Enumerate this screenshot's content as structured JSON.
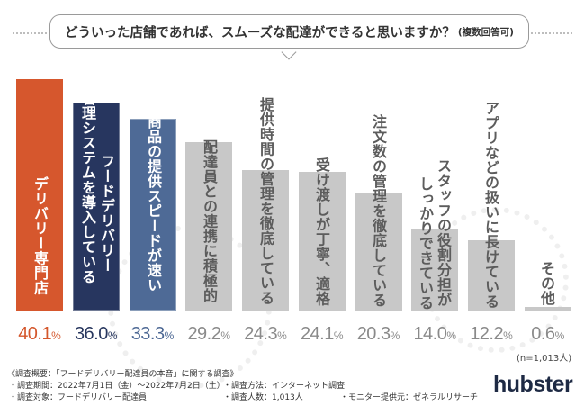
{
  "title": {
    "question": "どういった店舗であれば、スムーズな配達ができると思いますか？",
    "note": "(複数回答可)"
  },
  "chart_data": {
    "type": "bar",
    "title": "どういった店舗であれば、スムーズな配達ができると思いますか？(複数回答可)",
    "unit": "%",
    "ylim": [
      0,
      45
    ],
    "categories": [
      [
        "デリバリー専門店"
      ],
      [
        "フードデリバリー",
        "管理システムを導入している"
      ],
      [
        "商品の提供スピードが速い"
      ],
      [
        "配達員との連携に積極的"
      ],
      [
        "提供時間の管理を徹底している"
      ],
      [
        "受け渡しが丁寧、適格"
      ],
      [
        "注文数の管理を徹底している"
      ],
      [
        "スタッフの役割分担が",
        "しっかりできている"
      ],
      [
        "アプリなどの扱いに長けている"
      ],
      [
        "その他"
      ]
    ],
    "values": [
      40.1,
      36.0,
      33.3,
      29.2,
      24.3,
      24.1,
      20.3,
      14.0,
      12.2,
      0.6
    ],
    "colors": [
      "#d6572d",
      "#27365f",
      "#4e6a96",
      "#c8c8c8",
      "#c8c8c8",
      "#c8c8c8",
      "#c8c8c8",
      "#c8c8c8",
      "#c8c8c8",
      "#c8c8c8"
    ],
    "label_colors": [
      "#ffffff",
      "#ffffff",
      "#ffffff",
      "#5c5c5c",
      "#5c5c5c",
      "#5c5c5c",
      "#5c5c5c",
      "#5c5c5c",
      "#5c5c5c",
      "#5c5c5c"
    ],
    "value_colors": [
      "#d4572c",
      "#27365e",
      "#4d6894",
      "#8a8a8a",
      "#8a8a8a",
      "#8a8a8a",
      "#8a8a8a",
      "#8a8a8a",
      "#8a8a8a",
      "#8a8a8a"
    ],
    "sample_note": "(n=1,013人)"
  },
  "footer": {
    "heading": "《調査概要：「フードデリバリー配達員の本音」に関する調査》",
    "items": [
      "・調査期間：2022年7月1日（金）〜2022年7月2日（土）",
      "・調査対象：フードデリバリー配達員",
      "・調査方法：インターネット調査",
      "・調査人数：1,013人",
      "・モニター提供元：ゼネラルリサーチ"
    ],
    "logo": "hubster"
  }
}
